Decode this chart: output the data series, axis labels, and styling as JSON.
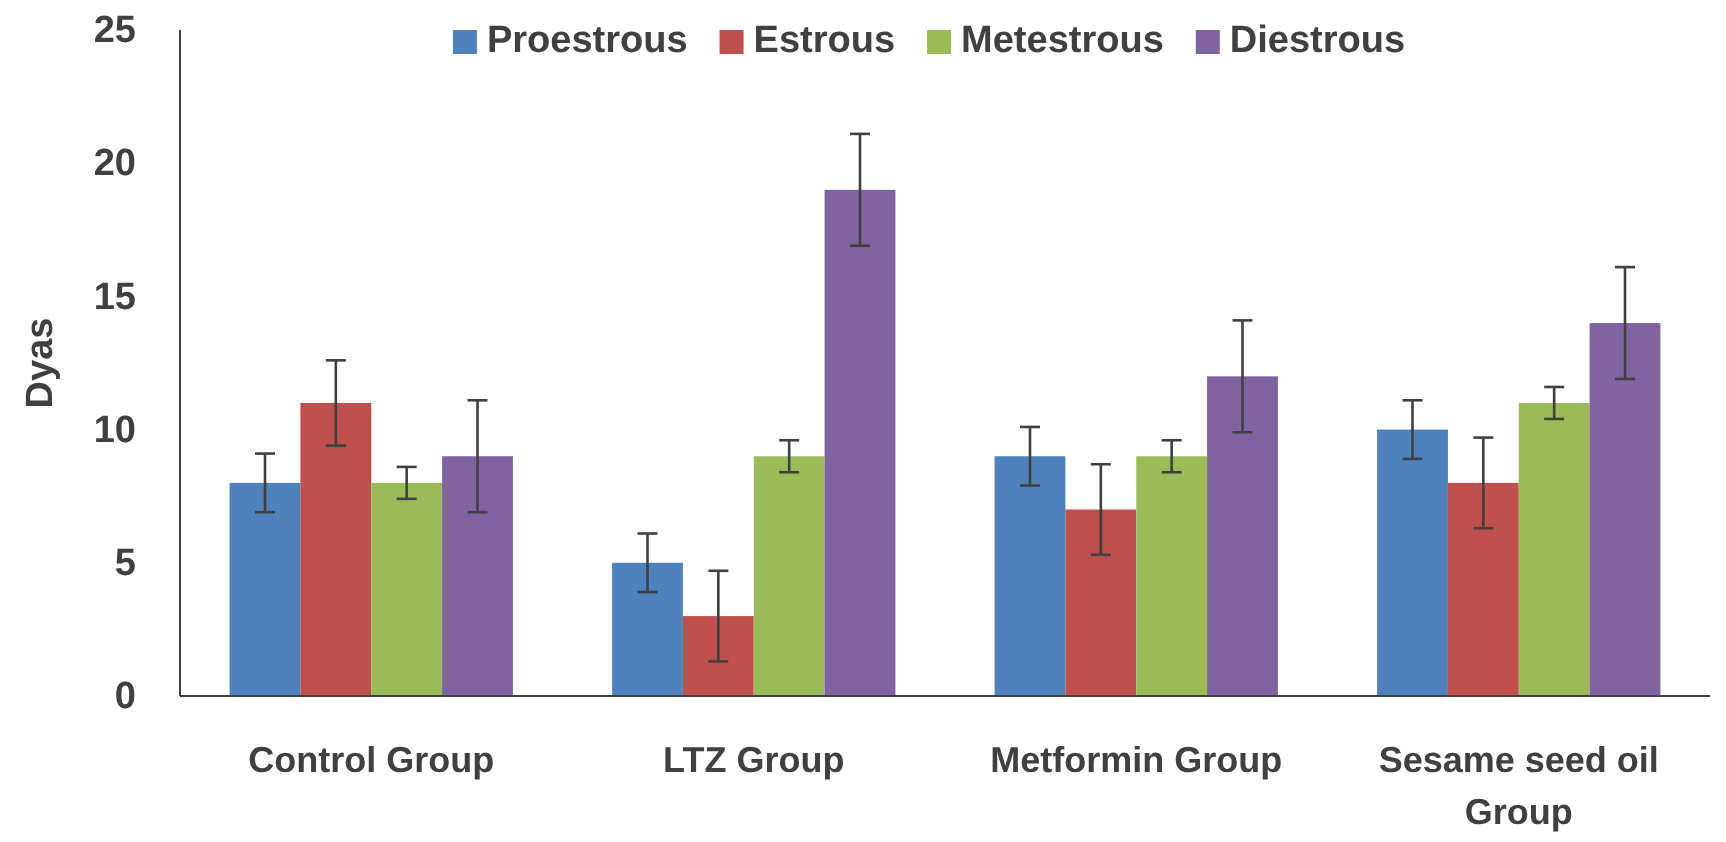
{
  "chart_data": {
    "type": "bar",
    "ylabel": "Dyas",
    "categories": [
      "Control Group",
      "LTZ Group",
      "Metformin Group",
      "Sesame seed oil Group"
    ],
    "series": [
      {
        "name": "Proestrous",
        "color": "#4f81bd",
        "values": [
          8,
          5,
          9,
          10
        ],
        "errors": [
          1.1,
          1.1,
          1.1,
          1.1
        ]
      },
      {
        "name": "Estrous",
        "color": "#c0504d",
        "values": [
          11,
          3,
          7,
          8
        ],
        "errors": [
          1.6,
          1.7,
          1.7,
          1.7
        ]
      },
      {
        "name": "Metestrous",
        "color": "#9bbb59",
        "values": [
          8,
          9,
          9,
          11
        ],
        "errors": [
          0.6,
          0.6,
          0.6,
          0.6
        ]
      },
      {
        "name": "Diestrous",
        "color": "#8064a2",
        "values": [
          9,
          19,
          12,
          14
        ],
        "errors": [
          2.1,
          2.1,
          2.1,
          2.1
        ]
      }
    ],
    "ylim": [
      0,
      25
    ],
    "yticks": [
      0,
      5,
      10,
      15,
      20,
      25
    ],
    "grid": false,
    "legend": "top"
  }
}
